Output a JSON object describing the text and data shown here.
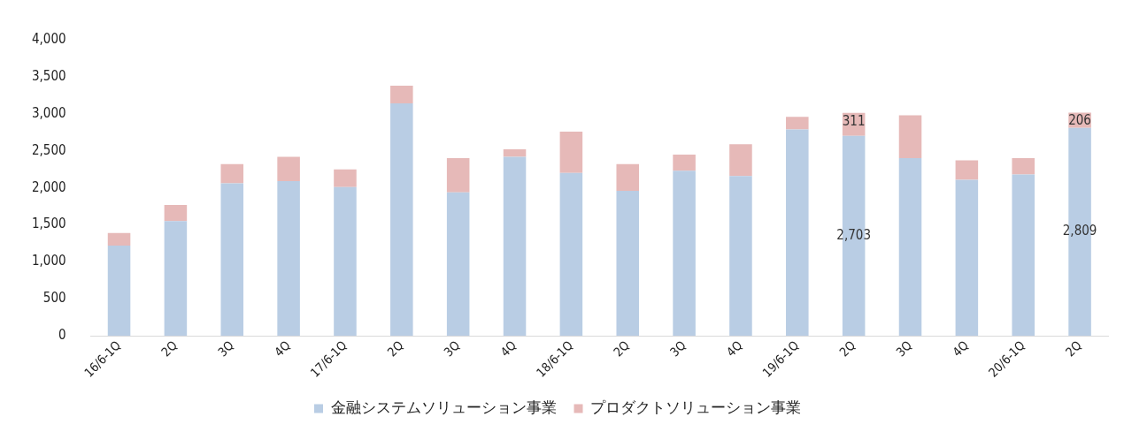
{
  "chart_data": {
    "type": "bar",
    "stacked": true,
    "categories": [
      "16/6-1Q",
      "2Q",
      "3Q",
      "4Q",
      "17/6-1Q",
      "2Q",
      "3Q",
      "4Q",
      "18/6-1Q",
      "2Q",
      "3Q",
      "4Q",
      "19/6-1Q",
      "2Q",
      "3Q",
      "4Q",
      "20/6-1Q",
      "2Q"
    ],
    "series": [
      {
        "name": "金融システムソリューション事業",
        "color": "#b9cde4",
        "values": [
          1220,
          1550,
          2060,
          2090,
          2010,
          3140,
          1940,
          2420,
          2200,
          1960,
          2230,
          2160,
          2790,
          2703,
          2400,
          2110,
          2180,
          2809
        ],
        "value_labels": [
          null,
          null,
          null,
          null,
          null,
          null,
          null,
          null,
          null,
          null,
          null,
          null,
          null,
          "2,703",
          null,
          null,
          null,
          "2,809"
        ]
      },
      {
        "name": "プロダクトソリューション事業",
        "color": "#e6b9b8",
        "values": [
          170,
          220,
          260,
          330,
          240,
          240,
          460,
          100,
          560,
          360,
          220,
          430,
          170,
          311,
          580,
          260,
          220,
          206
        ],
        "value_labels": [
          null,
          null,
          null,
          null,
          null,
          null,
          null,
          null,
          null,
          null,
          null,
          null,
          null,
          "311",
          null,
          null,
          null,
          "206"
        ]
      }
    ],
    "ylim": [
      0,
      4000
    ],
    "yticks": [
      {
        "value": 0,
        "label": "0"
      },
      {
        "value": 500,
        "label": "500"
      },
      {
        "value": 1000,
        "label": "1,000"
      },
      {
        "value": 1500,
        "label": "1,500"
      },
      {
        "value": 2000,
        "label": "2,000"
      },
      {
        "value": 2500,
        "label": "2,500"
      },
      {
        "value": 3000,
        "label": "3,000"
      },
      {
        "value": 3500,
        "label": "3,500"
      },
      {
        "value": 4000,
        "label": "4,000"
      }
    ],
    "grid": false,
    "legend": "bottom"
  }
}
